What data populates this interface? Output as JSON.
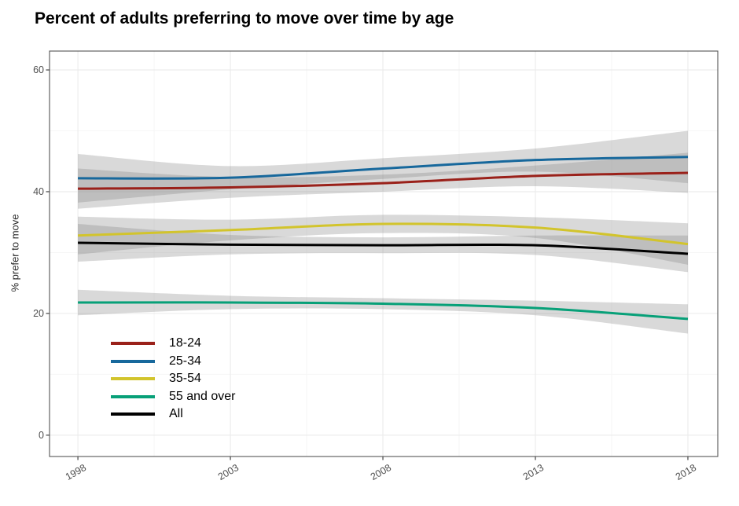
{
  "chart_data": {
    "type": "line",
    "title": "Percent of adults preferring to move over time by age",
    "xlabel": "",
    "ylabel": "% prefer to move",
    "x": [
      1998,
      2003,
      2008,
      2013,
      2018
    ],
    "x_tick_labels": [
      "1998",
      "2003",
      "2008",
      "2013",
      "2018"
    ],
    "y_ticks": [
      0,
      20,
      40,
      60
    ],
    "y_tick_labels": [
      "0",
      "20",
      "40",
      "60"
    ],
    "x_minor_gridlines": [
      2000.5,
      2005.5,
      2010.5,
      2015.5
    ],
    "y_minor_gridlines": [
      10,
      30,
      50
    ],
    "xlim": [
      1997.07,
      2018.98
    ],
    "ylim": [
      -3.5,
      63.1
    ],
    "grid": "major+minor",
    "legend_position": "inside-bottom-left",
    "has_confidence_bands": true,
    "series": [
      {
        "name": "18-24",
        "color": "#9A211A",
        "values": [
          40.5,
          40.7,
          41.4,
          42.6,
          43.1
        ],
        "ci_halfwidth": [
          3.3,
          1.7,
          1.4,
          1.7,
          3.3
        ]
      },
      {
        "name": "25-34",
        "color": "#17689C",
        "values": [
          42.2,
          42.3,
          43.8,
          45.2,
          45.7
        ],
        "ci_halfwidth": [
          4.0,
          1.9,
          1.7,
          1.9,
          4.3
        ]
      },
      {
        "name": "35-54",
        "color": "#D2C42C",
        "values": [
          32.8,
          33.7,
          34.7,
          34.1,
          31.4
        ],
        "ci_halfwidth": [
          3.1,
          1.7,
          1.5,
          1.7,
          3.4
        ]
      },
      {
        "name": "55 and over",
        "color": "#07A078",
        "values": [
          21.8,
          21.8,
          21.6,
          20.9,
          19.1
        ],
        "ci_halfwidth": [
          2.1,
          1.1,
          0.9,
          1.2,
          2.4
        ]
      },
      {
        "name": "All",
        "color": "#000000",
        "values": [
          31.6,
          31.3,
          31.2,
          31.2,
          29.8
        ],
        "ci_halfwidth": [
          3.1,
          1.6,
          1.3,
          1.6,
          3.0
        ]
      }
    ],
    "style_colors": {
      "band": "#808080",
      "band_opacity": 0.3,
      "grid_major": "#ECECEC",
      "grid_minor": "#F6F6F6",
      "panel_border": "#555555",
      "panel_background": "#FFFFFF",
      "tick": "#333333",
      "tick_label": "#4D4D4D",
      "title": "#000000",
      "axis_title": "#262626"
    }
  }
}
